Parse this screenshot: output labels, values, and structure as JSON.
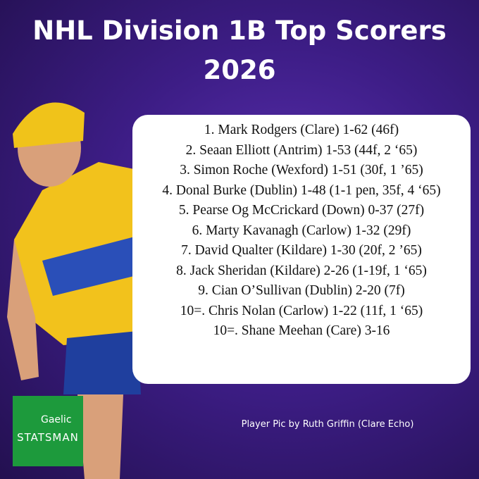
{
  "header": {
    "title": "NHL Division 1B Top Scorers 2026"
  },
  "list": {
    "items": [
      "1. Mark Rodgers (Clare) 1-62 (46f)",
      "2. Seaan Elliott (Antrim) 1-53 (44f, 2 ‘65)",
      "3. Simon Roche (Wexford) 1-51 (30f, 1 ’65)",
      "4. Donal Burke (Dublin) 1-48 (1-1 pen, 35f, 4 ‘65)",
      "5. Pearse Og McCrickard (Down) 0-37 (27f)",
      "6. Marty Kavanagh (Carlow) 1-32 (29f)",
      "7. David Qualter (Kildare) 1-30 (20f, 2 ’65)",
      "8. Jack Sheridan (Kildare) 2-26 (1-19f, 1 ‘65)",
      "9. Cian O’Sullivan (Dublin) 2-20 (7f)",
      "10=. Chris Nolan (Carlow) 1-22 (11f, 1 ‘65)",
      "10=. Shane Meehan (Care) 3-16"
    ]
  },
  "footer": {
    "credit": "Player Pic by Ruth Griffin (Clare Echo)",
    "logo": {
      "line1": "Gaelic",
      "line2": "STATSMAN"
    }
  }
}
